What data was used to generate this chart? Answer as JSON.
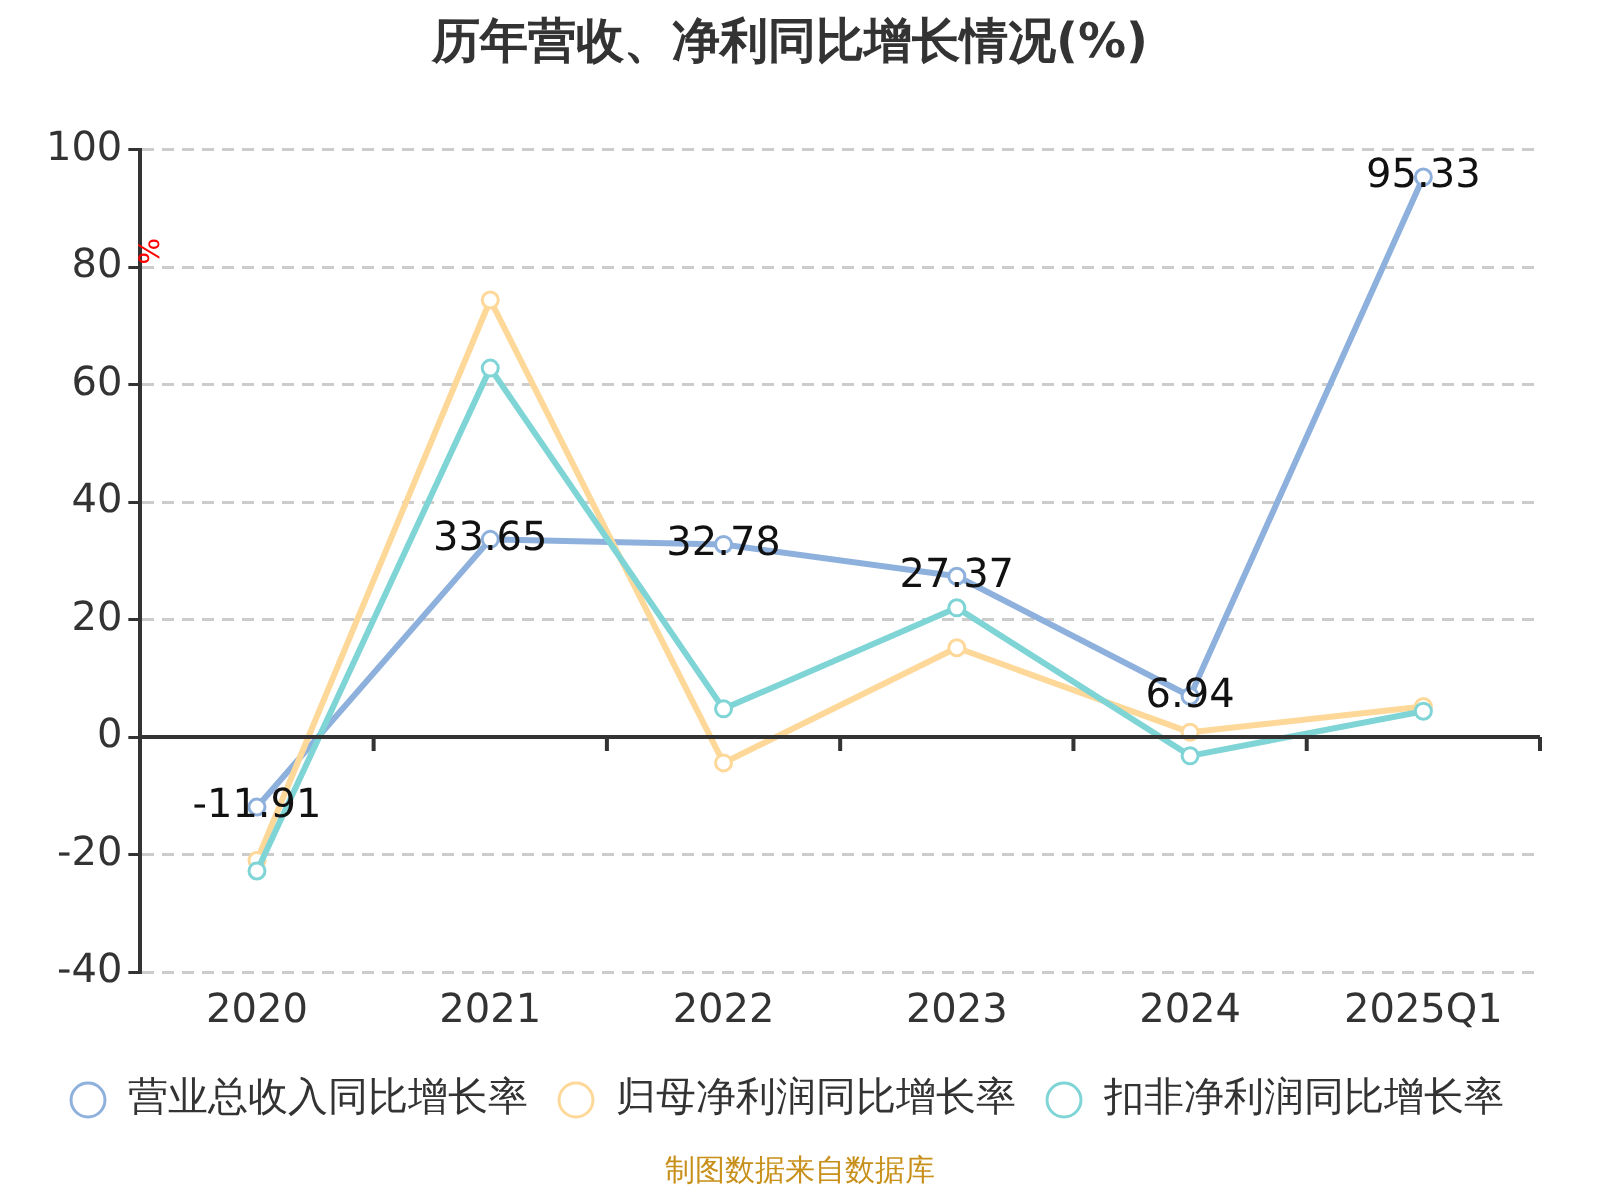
{
  "chart_data": {
    "type": "line",
    "title": "历年营收、净利同比增长情况(%)",
    "ylabel": "%",
    "categories": [
      "2020",
      "2021",
      "2022",
      "2023",
      "2024",
      "2025Q1"
    ],
    "series": [
      {
        "name": "营业总收入同比增长率",
        "color": "#8eb0dc",
        "values": [
          -11.91,
          33.65,
          32.78,
          27.37,
          6.94,
          95.33
        ],
        "value_labels": [
          "-11.91",
          "33.65",
          "32.78",
          "27.37",
          "6.94",
          "95.33"
        ]
      },
      {
        "name": "归母净利润同比增长率",
        "color": "#fdd899",
        "values": [
          -21,
          74.4,
          -4.4,
          15.2,
          0.8,
          5.2
        ]
      },
      {
        "name": "扣非净利润同比增长率",
        "color": "#7fd4d6",
        "values": [
          -22.8,
          62.8,
          4.8,
          22,
          -3.2,
          4.4
        ]
      }
    ],
    "ylim": [
      -40,
      100
    ],
    "yticks": [
      -40,
      -20,
      0,
      20,
      40,
      60,
      80,
      100
    ],
    "grid": "y",
    "legend": "bottom",
    "marker": "circle",
    "line_style": "solid",
    "annotations": [
      "制图数据来自数据库"
    ]
  }
}
